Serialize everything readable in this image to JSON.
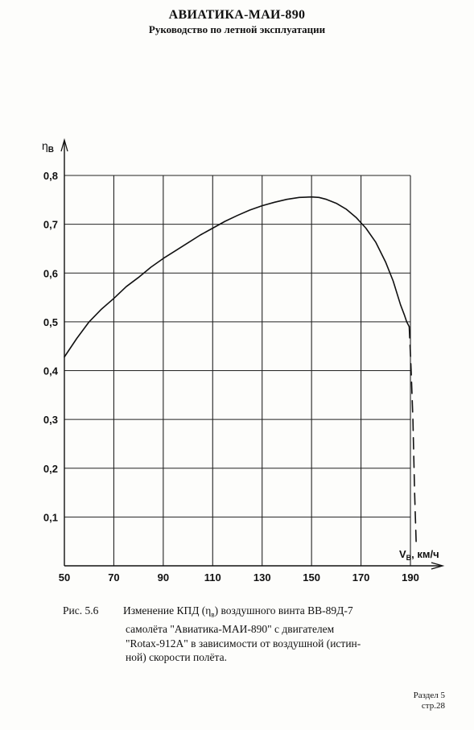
{
  "header": {
    "title": "АВИАТИКА-МАИ-890",
    "subtitle": "Руководство по летной эксплуатации"
  },
  "chart_data": {
    "type": "line",
    "ylabel_main": "η",
    "ylabel_sub": "В",
    "xlabel_main": "V",
    "xlabel_sub": "В",
    "xlabel_unit": ", км/ч",
    "xlim": [
      50,
      194
    ],
    "ylim": [
      0,
      0.82
    ],
    "x_ticks": [
      "50",
      "70",
      "90",
      "110",
      "130",
      "150",
      "170",
      "190"
    ],
    "y_ticks": [
      "0,8",
      "0,7",
      "0,6",
      "0,5",
      "0,4",
      "0,3",
      "0,2",
      "0,1"
    ],
    "grid": true,
    "series": [
      {
        "style": "solid",
        "x": [
          50,
          55,
          60,
          65,
          70,
          75,
          80,
          85,
          90,
          95,
          100,
          105,
          110,
          115,
          120,
          125,
          130,
          135,
          140,
          145,
          150,
          153,
          156,
          160,
          164,
          168,
          172,
          176,
          180,
          183,
          186,
          187.5,
          188.5,
          189.5
        ],
        "y": [
          0.428,
          0.466,
          0.5,
          0.526,
          0.548,
          0.572,
          0.591,
          0.612,
          0.63,
          0.646,
          0.662,
          0.678,
          0.692,
          0.706,
          0.718,
          0.729,
          0.738,
          0.745,
          0.751,
          0.755,
          0.756,
          0.755,
          0.751,
          0.743,
          0.731,
          0.714,
          0.692,
          0.663,
          0.622,
          0.584,
          0.535,
          0.515,
          0.5,
          0.49
        ]
      },
      {
        "style": "dashed",
        "x": [
          189.5,
          190.3,
          191,
          191.7,
          192.3
        ],
        "y": [
          0.49,
          0.4,
          0.3,
          0.15,
          0.05
        ]
      }
    ]
  },
  "caption": {
    "prefix": "Рис.",
    "number": "5.6",
    "line1": "Изменение КПД (η",
    "line1_sub": "в",
    "line1_rest": ") воздушного винта ВВ-89Д-7",
    "line2": "самолёта \"Авиатика-МАИ-890\" с двигателем",
    "line3": "\"Rotax-912A\" в зависимости от воздушной (истин-",
    "line4": "ной) скорости полёта."
  },
  "footer": {
    "section": "Раздел 5",
    "page": "стр.28"
  }
}
